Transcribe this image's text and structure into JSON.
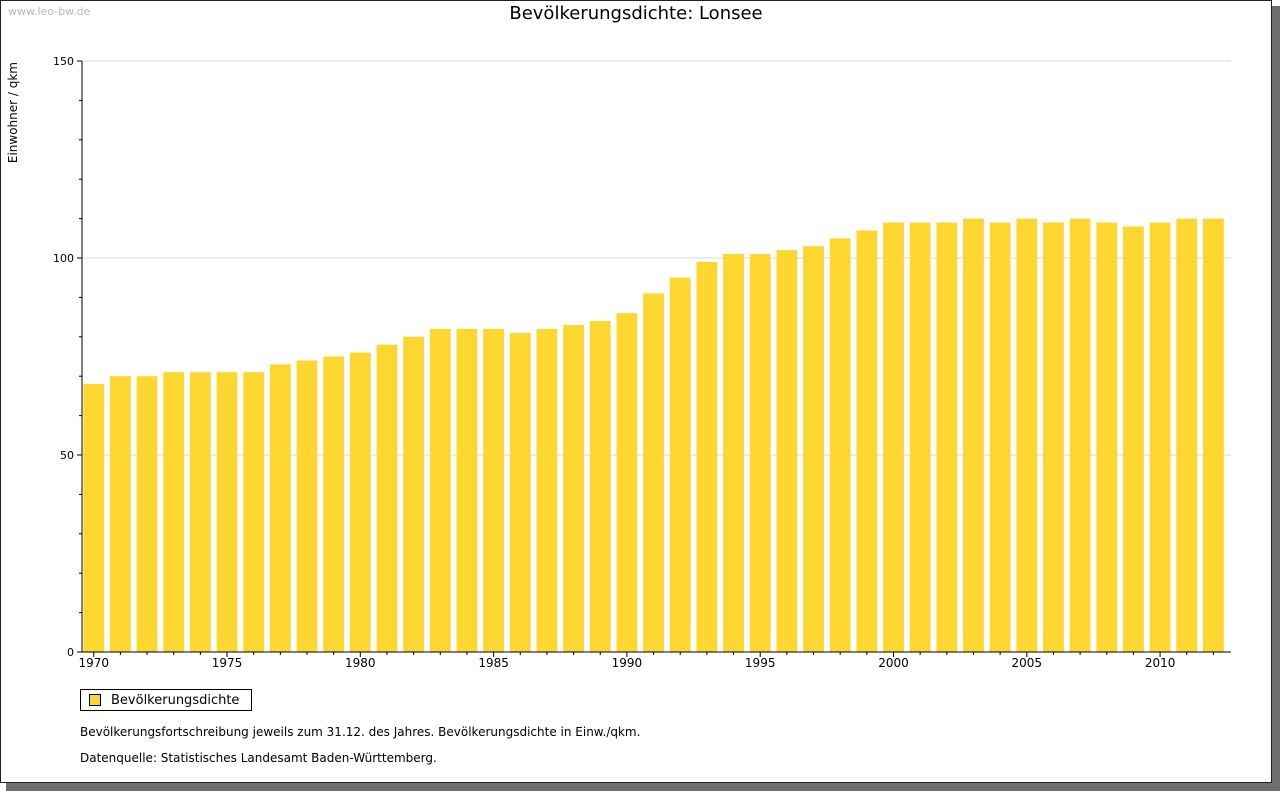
{
  "watermark": "www.leo-bw.de",
  "colors": {
    "bar": "#FDD62F",
    "grid": "#D9D9D9",
    "axis": "#000000"
  },
  "chart_data": {
    "type": "bar",
    "title": "Bevölkerungsdichte: Lonsee",
    "ylabel": "Einwohner / qkm",
    "xlabel": "",
    "ylim": [
      0,
      150
    ],
    "yticks": [
      0,
      50,
      100,
      150
    ],
    "xtick_labels": [
      "1970",
      "1975",
      "1980",
      "1985",
      "1990",
      "1995",
      "2000",
      "2005",
      "2010"
    ],
    "grid": true,
    "legend_position": "bottom-left",
    "categories": [
      1970,
      1971,
      1972,
      1973,
      1974,
      1975,
      1976,
      1977,
      1978,
      1979,
      1980,
      1981,
      1982,
      1983,
      1984,
      1985,
      1986,
      1987,
      1988,
      1989,
      1990,
      1991,
      1992,
      1993,
      1994,
      1995,
      1996,
      1997,
      1998,
      1999,
      2000,
      2001,
      2002,
      2003,
      2004,
      2005,
      2006,
      2007,
      2008,
      2009,
      2010,
      2011,
      2012
    ],
    "series": [
      {
        "name": "Bevölkerungsdichte",
        "values": [
          68,
          70,
          70,
          71,
          71,
          71,
          71,
          73,
          74,
          75,
          76,
          78,
          80,
          82,
          82,
          82,
          81,
          82,
          83,
          84,
          86,
          91,
          95,
          99,
          101,
          101,
          102,
          103,
          105,
          107,
          109,
          109,
          109,
          110,
          109,
          110,
          109,
          110,
          109,
          108,
          109,
          110,
          110
        ]
      }
    ]
  },
  "notes": {
    "line1": "Bevölkerungsfortschreibung jeweils zum 31.12. des Jahres. Bevölkerungsdichte in Einw./qkm.",
    "line2": "Datenquelle: Statistisches Landesamt Baden-Württemberg."
  }
}
